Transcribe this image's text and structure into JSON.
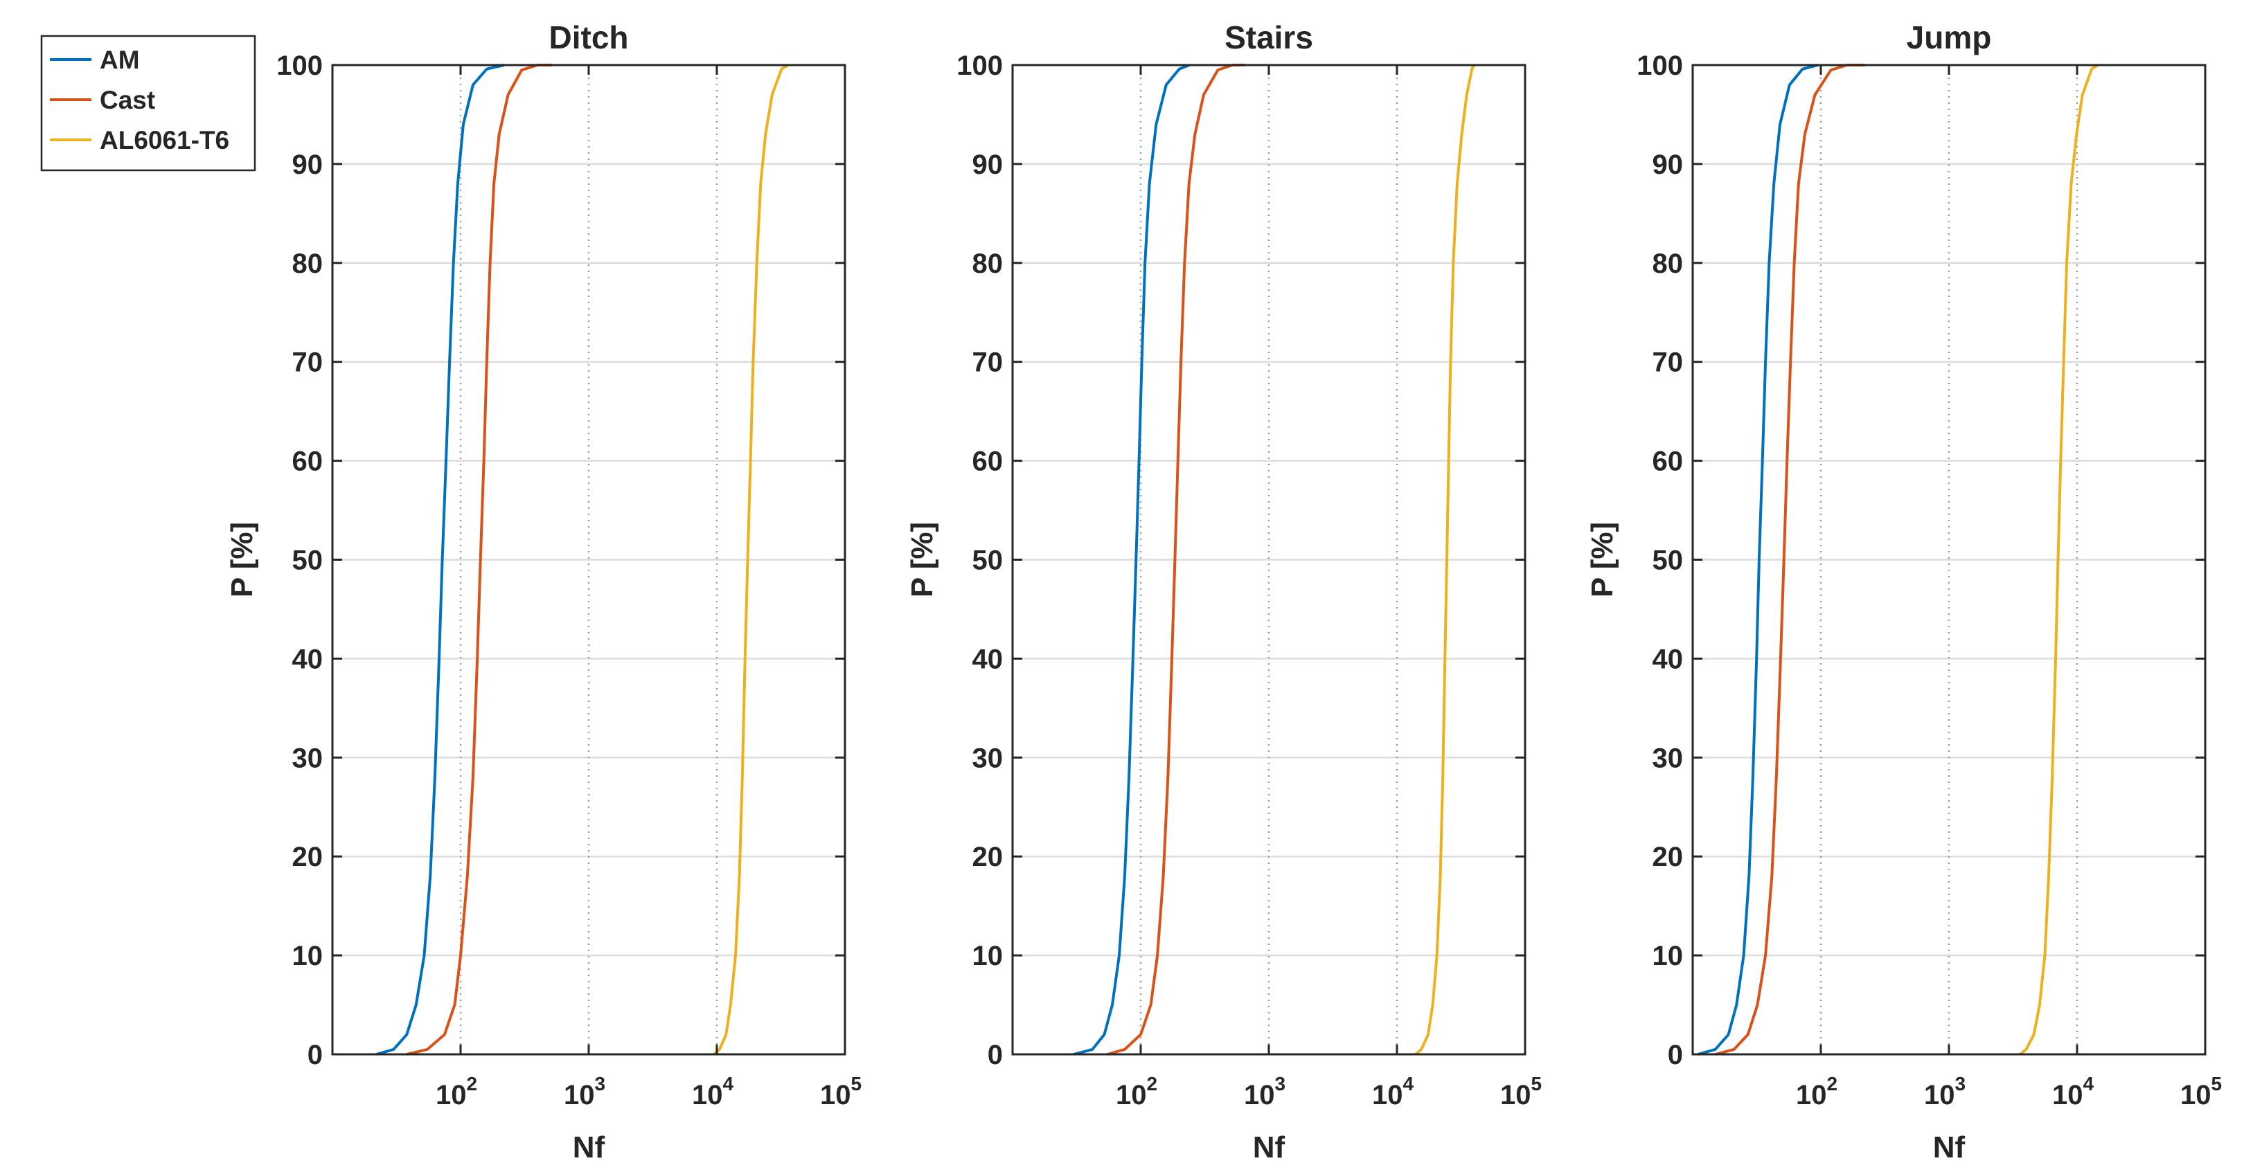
{
  "chart_data": [
    {
      "type": "line",
      "title": "Ditch",
      "xlabel": "Nf",
      "ylabel": "P [%]",
      "xscale": "log",
      "xlim": [
        10,
        100000
      ],
      "ylim": [
        0,
        100
      ],
      "x_tick_labels": [
        "10^2",
        "10^3",
        "10^4",
        "10^5"
      ],
      "y_tick_labels": [
        "0",
        "10",
        "20",
        "30",
        "40",
        "50",
        "60",
        "70",
        "80",
        "90",
        "100"
      ],
      "grid": {
        "x": "dotted",
        "y": "solid"
      },
      "legend": {
        "placement": "outside-top-left",
        "entries": [
          "AM",
          "Cast",
          "AL6061-T6"
        ]
      },
      "series": [
        {
          "name": "AM",
          "color": "#0072BD",
          "x": [
            22,
            30,
            38,
            45,
            52,
            58,
            63,
            68,
            72,
            77,
            82,
            88,
            95,
            105,
            125,
            160,
            220
          ],
          "y": [
            0,
            0.5,
            2,
            5,
            10,
            18,
            28,
            40,
            50,
            60,
            70,
            80,
            88,
            94,
            98,
            99.6,
            100
          ]
        },
        {
          "name": "Cast",
          "color": "#D95319",
          "x": [
            38,
            55,
            75,
            90,
            100,
            113,
            125,
            135,
            143,
            152,
            160,
            170,
            182,
            200,
            235,
            300,
            400,
            520
          ],
          "y": [
            0,
            0.5,
            2,
            5,
            10,
            18,
            28,
            40,
            50,
            60,
            70,
            80,
            88,
            93,
            97,
            99.5,
            100,
            100
          ]
        },
        {
          "name": "AL6061-T6",
          "color": "#EDB120",
          "x": [
            9500,
            10500,
            11800,
            12800,
            14000,
            15000,
            15800,
            16600,
            17400,
            18300,
            19200,
            20500,
            22000,
            24000,
            27000,
            32000,
            36000
          ],
          "y": [
            0,
            0.5,
            2,
            5,
            10,
            18,
            28,
            40,
            50,
            60,
            70,
            80,
            88,
            93,
            97,
            99.6,
            100
          ]
        }
      ]
    },
    {
      "type": "line",
      "title": "Stairs",
      "xlabel": "Nf",
      "ylabel": "P [%]",
      "xscale": "log",
      "xlim": [
        10,
        100000
      ],
      "ylim": [
        0,
        100
      ],
      "x_tick_labels": [
        "10^2",
        "10^3",
        "10^4",
        "10^5"
      ],
      "y_tick_labels": [
        "0",
        "10",
        "20",
        "30",
        "40",
        "50",
        "60",
        "70",
        "80",
        "90",
        "100"
      ],
      "grid": {
        "x": "dotted",
        "y": "solid"
      },
      "series": [
        {
          "name": "AM",
          "color": "#0072BD",
          "x": [
            30,
            42,
            52,
            60,
            68,
            75,
            81,
            87,
            92,
            97,
            102,
            108,
            117,
            132,
            158,
            200,
            240
          ],
          "y": [
            0,
            0.5,
            2,
            5,
            10,
            18,
            28,
            40,
            50,
            60,
            70,
            80,
            88,
            94,
            98,
            99.6,
            100
          ]
        },
        {
          "name": "Cast",
          "color": "#D95319",
          "x": [
            55,
            75,
            100,
            120,
            135,
            150,
            163,
            175,
            185,
            195,
            206,
            220,
            238,
            265,
            310,
            400,
            520,
            650
          ],
          "y": [
            0,
            0.5,
            2,
            5,
            10,
            18,
            28,
            40,
            50,
            60,
            70,
            80,
            88,
            93,
            97,
            99.5,
            100,
            100
          ]
        },
        {
          "name": "AL6061-T6",
          "color": "#EDB120",
          "x": [
            14000,
            15500,
            17500,
            19000,
            20500,
            21800,
            22800,
            23700,
            24500,
            25300,
            26200,
            27500,
            29500,
            32000,
            35000,
            38500,
            40000
          ],
          "y": [
            0,
            0.5,
            2,
            5,
            10,
            18,
            28,
            40,
            50,
            60,
            70,
            80,
            88,
            93,
            97,
            99.6,
            100
          ]
        }
      ]
    },
    {
      "type": "line",
      "title": "Jump",
      "xlabel": "Nf",
      "ylabel": "P [%]",
      "xscale": "log",
      "xlim": [
        10,
        100000
      ],
      "ylim": [
        0,
        100
      ],
      "x_tick_labels": [
        "10^2",
        "10^3",
        "10^4",
        "10^5"
      ],
      "y_tick_labels": [
        "0",
        "10",
        "20",
        "30",
        "40",
        "50",
        "60",
        "70",
        "80",
        "90",
        "100"
      ],
      "grid": {
        "x": "dotted",
        "y": "solid"
      },
      "series": [
        {
          "name": "AM",
          "color": "#0072BD",
          "x": [
            11,
            15,
            19,
            22,
            25,
            27.5,
            29.5,
            31.5,
            33,
            35,
            37,
            39.5,
            43,
            48,
            57,
            72,
            95
          ],
          "y": [
            0,
            0.5,
            2,
            5,
            10,
            18,
            28,
            40,
            50,
            60,
            70,
            80,
            88,
            94,
            98,
            99.6,
            100
          ]
        },
        {
          "name": "Cast",
          "color": "#D95319",
          "x": [
            15,
            21,
            27,
            32,
            37,
            41.5,
            45,
            48.5,
            51.5,
            54.5,
            58,
            62,
            67,
            75,
            90,
            120,
            160,
            220
          ],
          "y": [
            0,
            0.5,
            2,
            5,
            10,
            18,
            28,
            40,
            50,
            60,
            70,
            80,
            88,
            93,
            97,
            99.5,
            100,
            100
          ]
        },
        {
          "name": "AL6061-T6",
          "color": "#EDB120",
          "x": [
            3600,
            4000,
            4600,
            5100,
            5600,
            6000,
            6400,
            6800,
            7100,
            7450,
            7850,
            8300,
            9000,
            9900,
            11000,
            13000,
            14500
          ],
          "y": [
            0,
            0.5,
            2,
            5,
            10,
            18,
            28,
            40,
            50,
            60,
            70,
            80,
            88,
            93,
            97,
            99.6,
            100
          ]
        }
      ]
    }
  ]
}
